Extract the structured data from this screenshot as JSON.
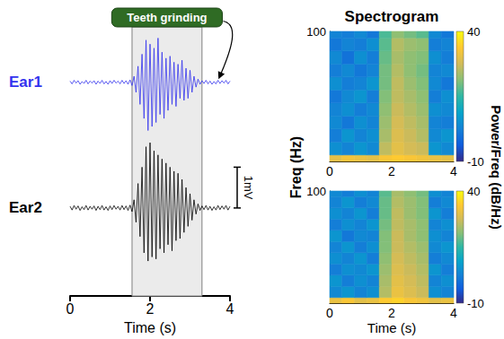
{
  "chart_data": [
    {
      "type": "line",
      "annotation": "Teeth grinding",
      "annotation_interval": [
        1.55,
        3.3
      ],
      "x_label": "Time (s)",
      "xlim": [
        0,
        4
      ],
      "xticks": [
        0,
        2,
        4
      ],
      "tick_labels": "x",
      "scale_bar": {
        "value": 1,
        "label": "1mV"
      },
      "x": [
        0,
        0.05,
        0.1,
        0.15,
        0.2,
        0.25,
        0.3,
        0.35,
        0.4,
        0.45,
        0.5,
        0.55,
        0.6,
        0.65,
        0.7,
        0.75,
        0.8,
        0.85,
        0.9,
        0.95,
        1,
        1.05,
        1.1,
        1.15,
        1.2,
        1.25,
        1.3,
        1.35,
        1.4,
        1.45,
        1.5,
        1.55,
        1.6,
        1.65,
        1.7,
        1.75,
        1.8,
        1.85,
        1.9,
        1.95,
        2,
        2.05,
        2.1,
        2.15,
        2.2,
        2.25,
        2.3,
        2.35,
        2.4,
        2.45,
        2.5,
        2.55,
        2.6,
        2.65,
        2.7,
        2.75,
        2.8,
        2.85,
        2.9,
        2.95,
        3,
        3.05,
        3.1,
        3.15,
        3.2,
        3.25,
        3.3,
        3.35,
        3.4,
        3.45,
        3.5,
        3.55,
        3.6,
        3.65,
        3.7,
        3.75,
        3.8,
        3.85,
        3.9,
        3.95,
        4
      ],
      "series": [
        {
          "name": "Ear1",
          "color": "#3333ee",
          "ylim": [
            -1.3,
            1.2
          ],
          "values": [
            0.03,
            -0.04,
            0.05,
            -0.02,
            0.04,
            -0.05,
            0.02,
            -0.03,
            0.05,
            -0.04,
            0.03,
            -0.02,
            0.04,
            -0.05,
            0.03,
            -0.03,
            0.05,
            -0.04,
            0.02,
            -0.05,
            0.04,
            -0.03,
            0.05,
            -0.02,
            0.03,
            -0.04,
            0.05,
            -0.03,
            0.04,
            -0.05,
            0.06,
            -0.08,
            0.15,
            -0.25,
            0.4,
            -0.55,
            0.7,
            -0.9,
            1.05,
            -1.2,
            0.95,
            -1.1,
            0.85,
            -1.0,
            1.1,
            -0.8,
            0.75,
            -0.9,
            0.6,
            -0.7,
            0.65,
            -0.55,
            0.5,
            -0.6,
            0.45,
            -0.4,
            0.55,
            -0.45,
            0.35,
            -0.4,
            0.3,
            -0.25,
            0.15,
            -0.12,
            0.08,
            -0.05,
            0.04,
            -0.03,
            0.05,
            -0.04,
            0.03,
            -0.05,
            0.02,
            -0.04,
            0.05,
            -0.03,
            0.04,
            -0.02,
            0.05,
            -0.04,
            0.03
          ]
        },
        {
          "name": "Ear2",
          "color": "#000000",
          "ylim": [
            -2.2,
            1.8
          ],
          "values": [
            0.04,
            -0.05,
            0.06,
            -0.03,
            0.05,
            -0.06,
            0.03,
            -0.04,
            0.06,
            -0.05,
            0.04,
            -0.03,
            0.05,
            -0.06,
            0.04,
            -0.04,
            0.06,
            -0.05,
            0.03,
            -0.06,
            0.05,
            -0.04,
            0.06,
            -0.03,
            0.04,
            -0.05,
            0.06,
            -0.04,
            0.05,
            -0.06,
            0.07,
            -0.09,
            0.2,
            -0.35,
            0.6,
            -0.7,
            1.0,
            -1.1,
            1.5,
            -1.3,
            1.6,
            -1.2,
            1.4,
            -1.25,
            1.3,
            -1.0,
            1.2,
            -1.1,
            1.1,
            -0.9,
            1.0,
            -1.05,
            0.9,
            -0.8,
            0.85,
            -0.75,
            0.7,
            -0.6,
            0.5,
            -0.45,
            0.35,
            -0.3,
            0.2,
            -0.15,
            0.1,
            -0.06,
            0.05,
            -0.04,
            0.06,
            -0.05,
            0.04,
            -0.06,
            0.03,
            -0.05,
            0.06,
            -0.04,
            0.05,
            -0.03,
            0.06,
            -0.05,
            0.04
          ]
        }
      ]
    },
    {
      "type": "heatmap",
      "title": "Spectrogram",
      "x_label": "Time (s)",
      "y_label": "Freq (Hz)",
      "colorbar_label": "Power/Freq (dB/Hz)",
      "xlim": [
        0,
        4
      ],
      "xticks": [
        0,
        2,
        4
      ],
      "ylim": [
        0,
        100
      ],
      "yticks": [
        100
      ],
      "colorbar_range": [
        -10,
        40
      ],
      "colorbar_ticks": [
        -10,
        40
      ],
      "time_edges": [
        0,
        0.4,
        0.8,
        1.2,
        1.6,
        2.0,
        2.4,
        2.8,
        3.2,
        3.6,
        4.0
      ],
      "freq_edges": [
        0,
        5,
        15,
        25,
        35,
        45,
        55,
        65,
        75,
        85,
        95,
        100
      ],
      "cells": [
        [
          [
            30,
            32,
            31,
            30,
            33,
            34,
            33,
            32,
            31,
            30
          ],
          [
            5,
            3,
            6,
            4,
            26,
            30,
            28,
            27,
            6,
            4
          ],
          [
            2,
            6,
            3,
            5,
            24,
            29,
            27,
            25,
            4,
            6
          ],
          [
            4,
            1,
            5,
            3,
            23,
            28,
            26,
            24,
            3,
            2
          ],
          [
            3,
            5,
            2,
            4,
            22,
            27,
            25,
            23,
            5,
            4
          ],
          [
            1,
            4,
            6,
            2,
            21,
            26,
            24,
            22,
            2,
            5
          ],
          [
            5,
            2,
            3,
            6,
            20,
            26,
            23,
            21,
            4,
            1
          ],
          [
            2,
            4,
            1,
            3,
            20,
            25,
            22,
            20,
            3,
            4
          ],
          [
            4,
            0,
            5,
            2,
            19,
            24,
            22,
            21,
            5,
            2
          ],
          [
            1,
            3,
            2,
            5,
            18,
            25,
            23,
            22,
            2,
            3
          ],
          [
            3,
            2,
            4,
            1,
            17,
            22,
            20,
            18,
            4,
            1
          ]
        ],
        [
          [
            31,
            33,
            30,
            31,
            34,
            35,
            33,
            32,
            30,
            31
          ],
          [
            4,
            6,
            3,
            5,
            25,
            31,
            29,
            27,
            5,
            3
          ],
          [
            6,
            2,
            5,
            3,
            24,
            30,
            28,
            26,
            3,
            5
          ],
          [
            2,
            5,
            4,
            6,
            23,
            29,
            27,
            25,
            6,
            2
          ],
          [
            5,
            3,
            6,
            2,
            22,
            28,
            26,
            24,
            2,
            4
          ],
          [
            3,
            6,
            2,
            5,
            21,
            27,
            25,
            23,
            4,
            6
          ],
          [
            6,
            1,
            4,
            3,
            21,
            27,
            24,
            22,
            5,
            3
          ],
          [
            2,
            5,
            3,
            6,
            20,
            26,
            24,
            22,
            3,
            5
          ],
          [
            5,
            3,
            6,
            2,
            19,
            26,
            23,
            21,
            6,
            2
          ],
          [
            3,
            6,
            2,
            4,
            19,
            25,
            23,
            21,
            2,
            4
          ],
          [
            4,
            2,
            5,
            3,
            18,
            24,
            22,
            20,
            5,
            3
          ]
        ]
      ]
    }
  ]
}
